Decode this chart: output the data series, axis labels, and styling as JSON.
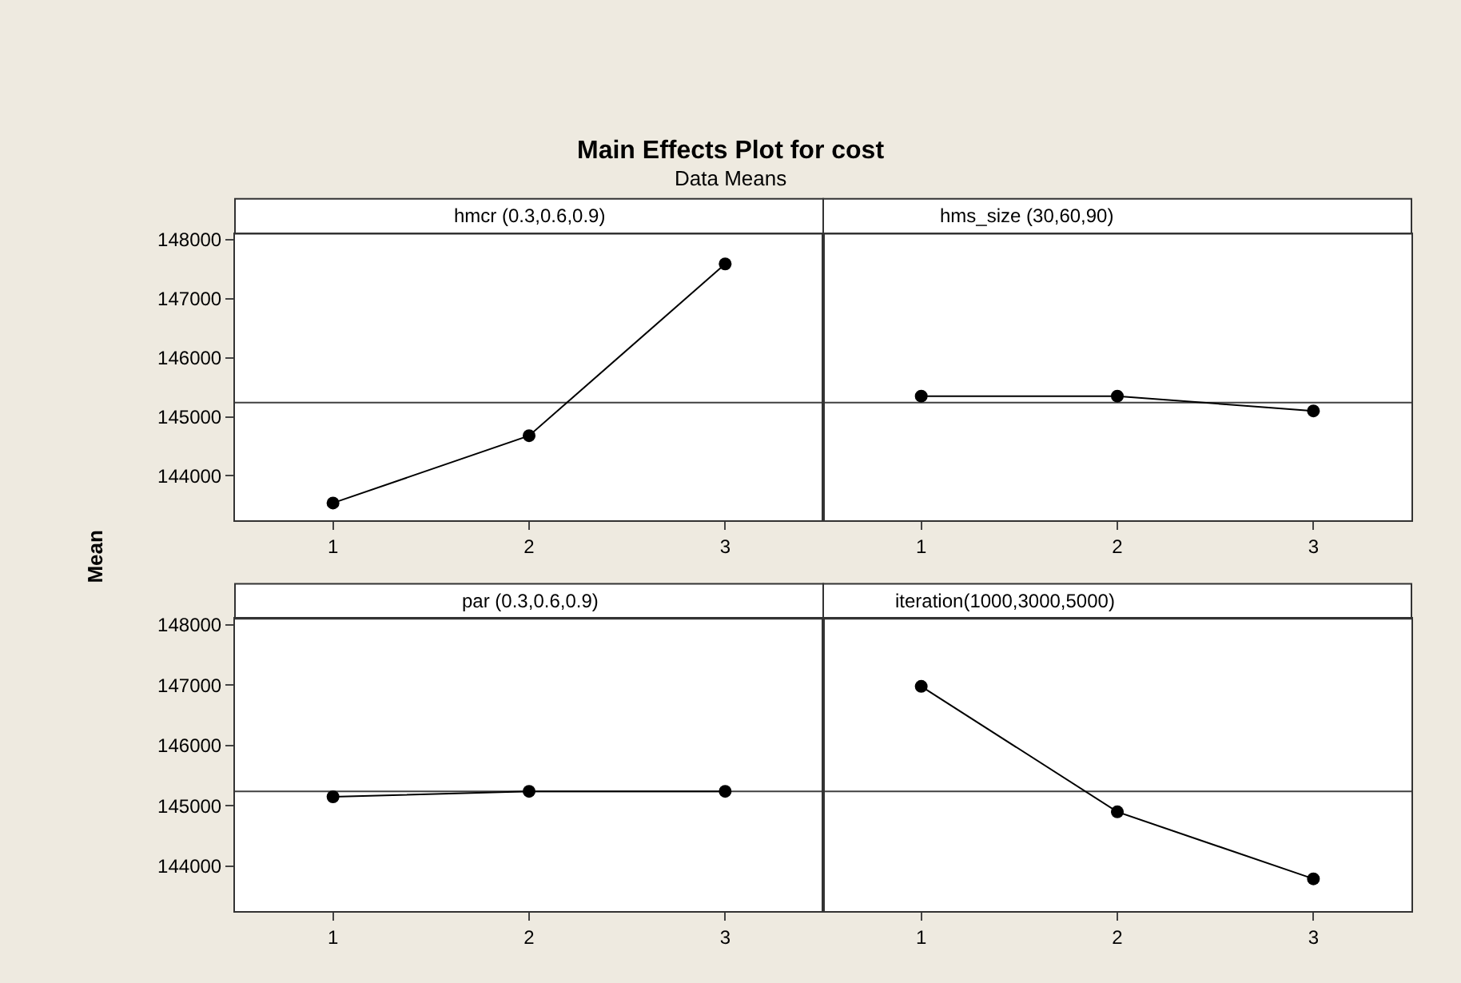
{
  "chart_data": [
    {
      "type": "other",
      "title": "Main Effects Plot for cost",
      "subtitle": "Data Means",
      "ylabel": "Mean"
    },
    {
      "type": "line",
      "title": "hmcr (0.3,0.6,0.9)",
      "x": [
        1,
        2,
        3
      ],
      "values": [
        143540,
        144680,
        147590
      ],
      "color": "#000000",
      "marker": "circle",
      "line_style": "solid",
      "xlim": [
        0.5,
        3.5
      ],
      "xticks": [
        1,
        2,
        3
      ],
      "ylim": [
        143250,
        148100
      ],
      "yticks": [
        144000,
        145000,
        146000,
        147000,
        148000
      ],
      "ref_lines": [
        {
          "axis": "y",
          "value": 145240,
          "color": "#404040"
        }
      ],
      "grid": false
    },
    {
      "type": "line",
      "title": "hms_size (30,60,90)",
      "x": [
        1,
        2,
        3
      ],
      "values": [
        145350,
        145350,
        145100
      ],
      "color": "#000000",
      "marker": "circle",
      "line_style": "solid",
      "xlim": [
        0.5,
        3.5
      ],
      "xticks": [
        1,
        2,
        3
      ],
      "ylim": [
        143250,
        148100
      ],
      "yticks": [
        144000,
        145000,
        146000,
        147000,
        148000
      ],
      "ref_lines": [
        {
          "axis": "y",
          "value": 145240,
          "color": "#404040"
        }
      ],
      "grid": false,
      "tick_labels": "x"
    },
    {
      "type": "line",
      "title": "par (0.3,0.6,0.9)",
      "x": [
        1,
        2,
        3
      ],
      "values": [
        145150,
        145240,
        145240
      ],
      "color": "#000000",
      "marker": "circle",
      "line_style": "solid",
      "xlim": [
        0.5,
        3.5
      ],
      "xticks": [
        1,
        2,
        3
      ],
      "ylim": [
        143250,
        148100
      ],
      "yticks": [
        144000,
        145000,
        146000,
        147000,
        148000
      ],
      "ref_lines": [
        {
          "axis": "y",
          "value": 145240,
          "color": "#404040"
        }
      ],
      "grid": false
    },
    {
      "type": "line",
      "title": "iteration(1000,3000,5000)",
      "x": [
        1,
        2,
        3
      ],
      "values": [
        146980,
        144900,
        143790
      ],
      "color": "#000000",
      "marker": "circle",
      "line_style": "solid",
      "xlim": [
        0.5,
        3.5
      ],
      "xticks": [
        1,
        2,
        3
      ],
      "ylim": [
        143250,
        148100
      ],
      "yticks": [
        144000,
        145000,
        146000,
        147000,
        148000
      ],
      "ref_lines": [
        {
          "axis": "y",
          "value": 145240,
          "color": "#404040"
        }
      ],
      "grid": false,
      "tick_labels": "x"
    }
  ]
}
